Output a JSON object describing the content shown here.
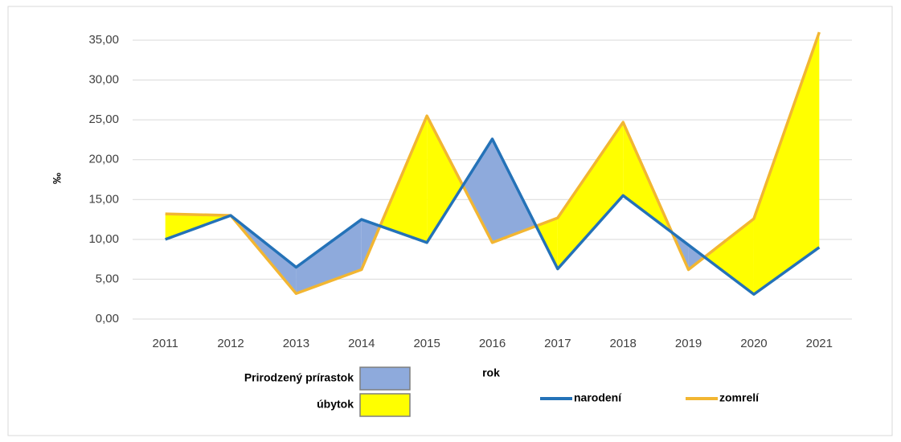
{
  "chart_data": {
    "type": "line",
    "x_label": "rok",
    "y_label": "‰",
    "categories": [
      "2011",
      "2012",
      "2013",
      "2014",
      "2015",
      "2016",
      "2017",
      "2018",
      "2019",
      "2020",
      "2021"
    ],
    "series": [
      {
        "name": "narodení",
        "color": "#2472b8",
        "values": [
          10.0,
          13.0,
          6.5,
          12.5,
          9.6,
          22.6,
          6.3,
          15.5,
          9.3,
          3.1,
          9.0
        ]
      },
      {
        "name": "zomrelí",
        "color": "#f2b632",
        "values": [
          13.2,
          13.0,
          3.2,
          6.2,
          25.5,
          9.6,
          12.7,
          24.7,
          6.2,
          12.6,
          36.0
        ]
      }
    ],
    "area_legend": [
      {
        "label": "Prirodzený prírastok",
        "color": "#8eaadc"
      },
      {
        "label": "úbytok",
        "color": "#ffff00"
      }
    ],
    "ylim": [
      0,
      35
    ],
    "yticks": [
      {
        "value": 0,
        "label": "0,00"
      },
      {
        "value": 5,
        "label": "5,00"
      },
      {
        "value": 10,
        "label": "10,00"
      },
      {
        "value": 15,
        "label": "15,00"
      },
      {
        "value": 20,
        "label": "20,00"
      },
      {
        "value": 25,
        "label": "25,00"
      },
      {
        "value": 30,
        "label": "30,00"
      },
      {
        "value": 35,
        "label": "35,00"
      }
    ],
    "grid": true
  }
}
